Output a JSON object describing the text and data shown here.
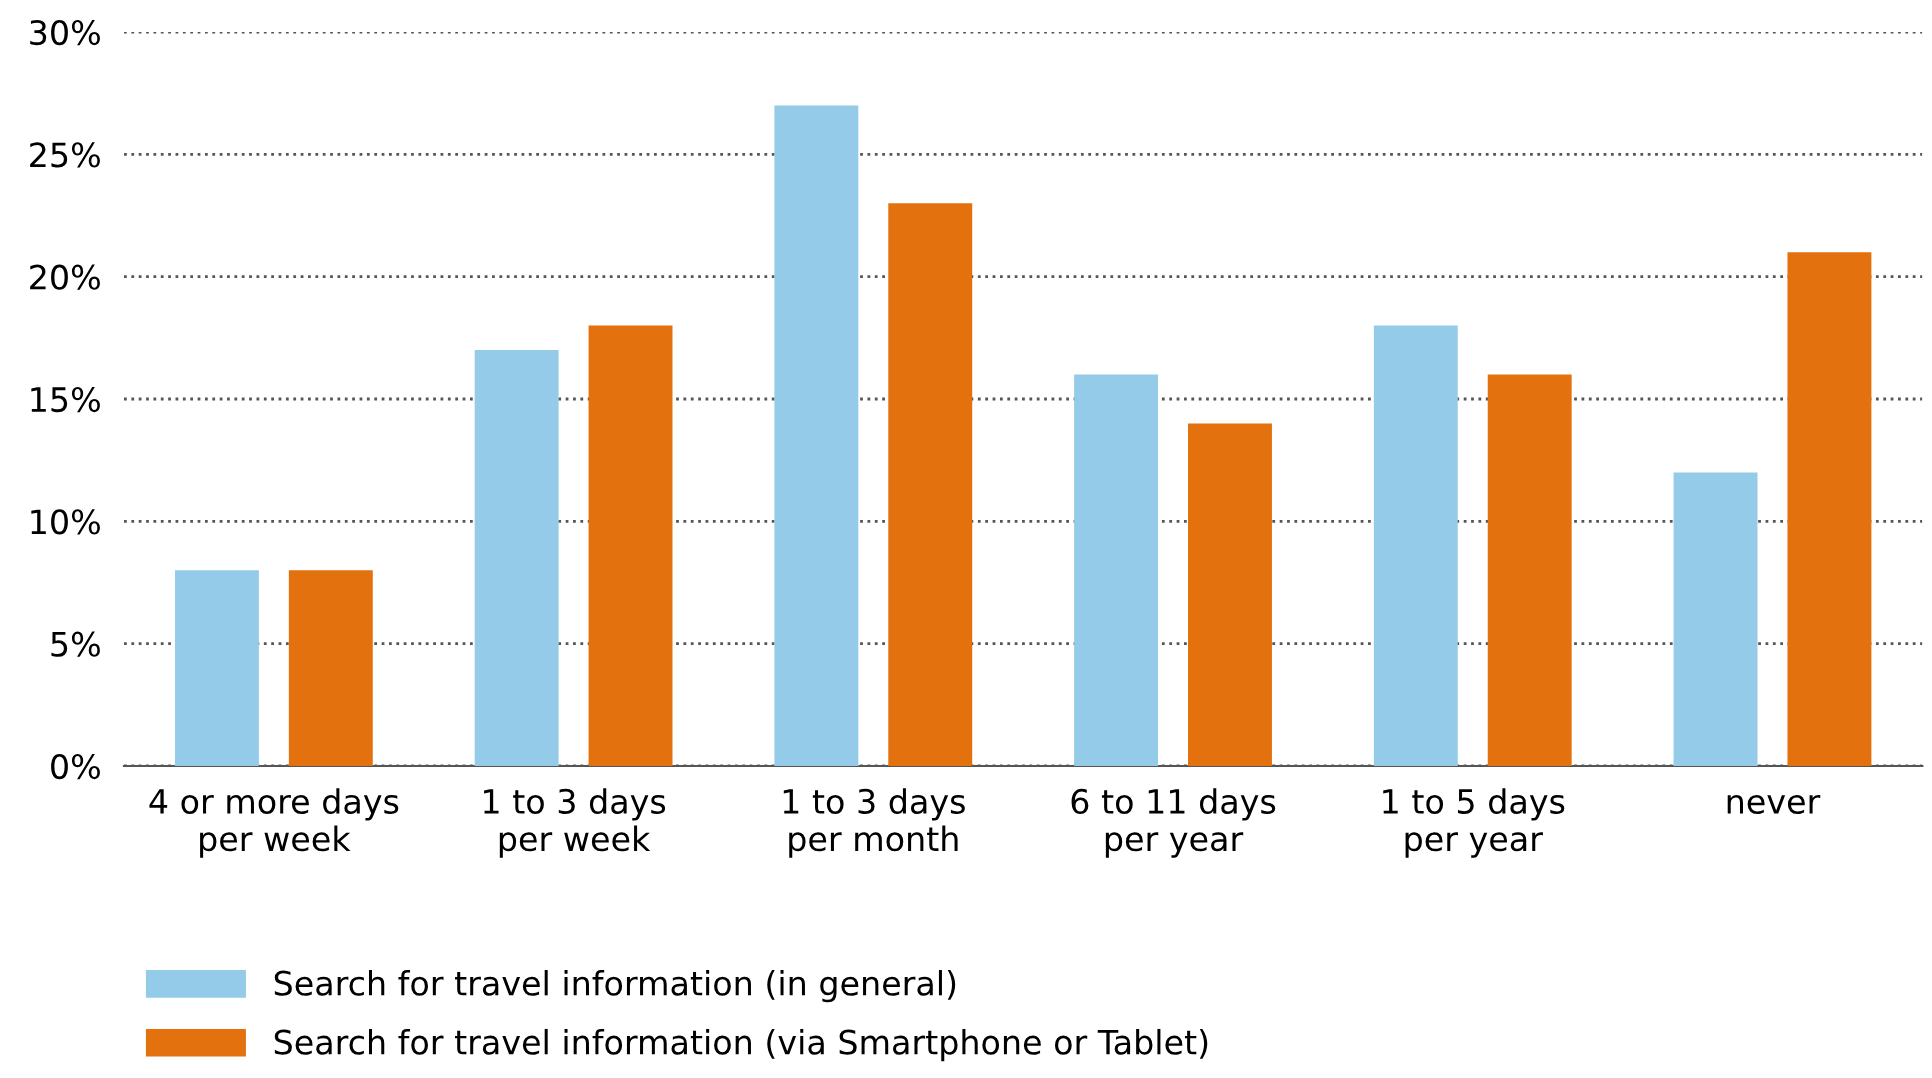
{
  "chart_data": {
    "type": "bar",
    "categories": [
      "4 or more days\nper week",
      "1 to 3 days\nper week",
      "1 to 3 days\nper month",
      "6 to 11 days\nper year",
      "1 to 5 days\nper year",
      "never"
    ],
    "series": [
      {
        "name": "Search for travel information (in general)",
        "color": "#93cbe8",
        "values": [
          8,
          17,
          27,
          16,
          18,
          12
        ]
      },
      {
        "name": "Search for travel information (via Smartphone or Tablet)",
        "color": "#e2710e",
        "values": [
          8,
          18,
          23,
          14,
          16,
          21
        ]
      }
    ],
    "ylim": [
      0,
      30
    ],
    "yticks": [
      {
        "value": 0,
        "label": "0%"
      },
      {
        "value": 5,
        "label": "5%"
      },
      {
        "value": 10,
        "label": "10%"
      },
      {
        "value": 15,
        "label": "15%"
      },
      {
        "value": 20,
        "label": "20%"
      },
      {
        "value": 25,
        "label": "25%"
      },
      {
        "value": 30,
        "label": "30%"
      }
    ],
    "grid": "y",
    "legend": "bottom"
  }
}
